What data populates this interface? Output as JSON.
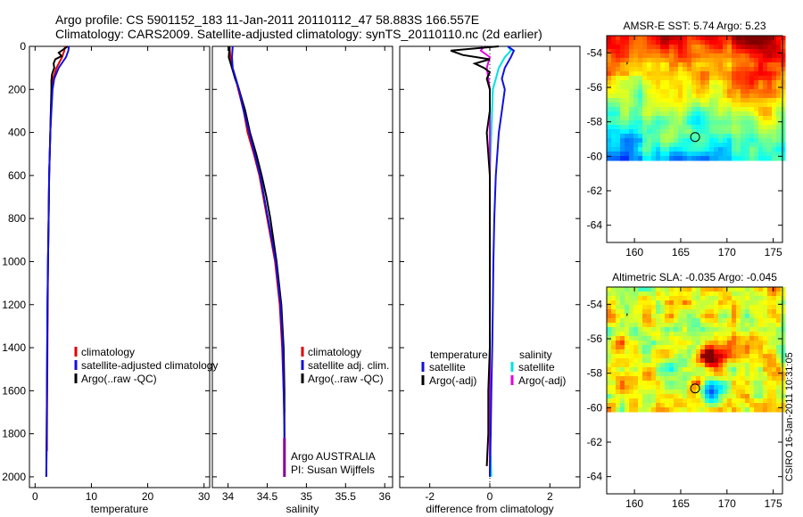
{
  "header": {
    "line1": "Argo profile: CS 5901152_183 11-Jan-2011 20110112_47 58.883S 166.557E",
    "line2": "Climatology: CARS2009. Satellite-adjusted climatology: synTS_20110110.nc (2d earlier)"
  },
  "colors": {
    "climatology": "#e00000",
    "satellite": "#1010e0",
    "argo": "#000000",
    "satellite_diff_salinity": "#00e0e0",
    "argo_diff_salinity": "#e000e0",
    "accent_purple": "#8000a0"
  },
  "chart_data": [
    {
      "type": "line",
      "panel": "temperature",
      "xlabel": "temperature",
      "xlim": [
        -1,
        31
      ],
      "ylim": [
        2050,
        0
      ],
      "xticks": [
        0,
        10,
        20,
        30
      ],
      "yticks": [
        0,
        200,
        400,
        600,
        800,
        1000,
        1200,
        1400,
        1600,
        1800,
        2000
      ],
      "ytick_labels": [
        "0",
        "200",
        "400",
        "600",
        "800",
        "1000",
        "1200",
        "1400",
        "1600",
        "1800",
        "2000"
      ],
      "xtick_labels": [
        "0",
        "10",
        "20",
        "30"
      ],
      "legend": [
        "climatology",
        "satellite-adjusted climatology",
        "Argo(..raw -QC)"
      ],
      "series": [
        {
          "name": "climatology",
          "depth": [
            0,
            20,
            50,
            100,
            150,
            200,
            300,
            400,
            600,
            800,
            1000,
            1200,
            1400,
            1600,
            1800,
            1880
          ],
          "values": [
            5.3,
            5.2,
            4.8,
            3.8,
            3.2,
            3.0,
            2.8,
            2.7,
            2.5,
            2.4,
            2.3,
            2.25,
            2.2,
            2.15,
            2.1,
            2.1
          ]
        },
        {
          "name": "satellite-adjusted climatology",
          "depth": [
            0,
            20,
            50,
            100,
            150,
            200,
            300,
            400,
            600,
            800,
            1000,
            1200,
            1400,
            1600,
            1800,
            2000
          ],
          "values": [
            6.0,
            5.9,
            5.5,
            4.2,
            3.4,
            3.1,
            2.9,
            2.7,
            2.5,
            2.4,
            2.3,
            2.2,
            2.15,
            2.1,
            2.05,
            2.0
          ]
        },
        {
          "name": "Argo(..raw -QC)",
          "depth": [
            0,
            15,
            30,
            45,
            60,
            80,
            100,
            130,
            160,
            200,
            300,
            400,
            600,
            800,
            1000,
            1200,
            1400,
            1600,
            1800,
            2000
          ],
          "values": [
            5.8,
            5.0,
            4.2,
            4.7,
            3.6,
            3.3,
            3.4,
            3.0,
            2.9,
            2.9,
            2.8,
            2.7,
            2.5,
            2.4,
            2.3,
            2.2,
            2.15,
            2.1,
            2.05,
            2.0
          ]
        }
      ]
    },
    {
      "type": "line",
      "panel": "salinity",
      "xlabel": "salinity",
      "xlim": [
        33.8,
        36.1
      ],
      "ylim": [
        2050,
        0
      ],
      "xticks": [
        34,
        34.5,
        35,
        35.5,
        36
      ],
      "xtick_labels": [
        "34",
        "34.5",
        "35",
        "35.5",
        "36"
      ],
      "legend": [
        "climatology",
        "satellite adj. clim.",
        "Argo(..raw -QC)"
      ],
      "annotation_lines": [
        "Argo AUSTRALIA",
        "PI: Susan Wijffels"
      ],
      "series": [
        {
          "name": "climatology",
          "depth": [
            0,
            50,
            100,
            150,
            200,
            300,
            400,
            500,
            600,
            700,
            800,
            1000,
            1200,
            1400,
            1600,
            1700
          ],
          "values": [
            34.02,
            34.03,
            34.05,
            34.1,
            34.13,
            34.2,
            34.25,
            34.33,
            34.4,
            34.45,
            34.5,
            34.6,
            34.66,
            34.69,
            34.71,
            34.72
          ]
        },
        {
          "name": "satellite adj. clim.",
          "depth": [
            0,
            50,
            100,
            150,
            200,
            300,
            400,
            500,
            600,
            700,
            800,
            1000,
            1200,
            1400,
            1600,
            1800,
            2000
          ],
          "values": [
            34.06,
            34.05,
            34.06,
            34.1,
            34.14,
            34.2,
            34.27,
            34.34,
            34.41,
            34.46,
            34.51,
            34.61,
            34.67,
            34.7,
            34.71,
            34.72,
            34.72
          ]
        },
        {
          "name": "Argo(..raw -QC)",
          "depth": [
            0,
            50,
            100,
            150,
            200,
            300,
            400,
            500,
            600,
            700,
            800,
            1000,
            1200,
            1400,
            1600,
            1800,
            2000
          ],
          "values": [
            34.02,
            34.01,
            34.05,
            34.09,
            34.14,
            34.22,
            34.28,
            34.36,
            34.43,
            34.49,
            34.54,
            34.62,
            34.68,
            34.71,
            34.72,
            34.72,
            34.72
          ]
        }
      ]
    },
    {
      "type": "line",
      "panel": "difference",
      "xlabel": "difference from climatology",
      "xlim": [
        -3,
        3
      ],
      "ylim": [
        2050,
        0
      ],
      "xticks": [
        -2,
        0,
        2
      ],
      "xtick_labels": [
        "-2",
        "0",
        "2"
      ],
      "legend_groups": [
        {
          "title": "temperature",
          "entries": [
            "satellite",
            "Argo(-adj)"
          ]
        },
        {
          "title": "salinity",
          "entries": [
            "satellite",
            "Argo(-adj)"
          ]
        }
      ],
      "series": [
        {
          "name": "temperature satellite",
          "depth": [
            0,
            20,
            50,
            100,
            150,
            200,
            300,
            400,
            600,
            800,
            1000,
            1200,
            1400,
            1600,
            1800,
            2000
          ],
          "values": [
            0.6,
            0.8,
            0.7,
            0.5,
            0.4,
            0.5,
            0.4,
            0.3,
            0.2,
            0.15,
            0.12,
            0.1,
            0.08,
            0.05,
            0.03,
            0.0
          ]
        },
        {
          "name": "temperature Argo(-adj)",
          "depth": [
            0,
            20,
            40,
            60,
            80,
            100,
            120,
            150,
            200,
            300,
            400,
            600,
            800,
            1000,
            1200,
            1400,
            1600,
            1800,
            1950
          ],
          "values": [
            0.3,
            -1.3,
            -0.9,
            0.0,
            -0.5,
            -0.2,
            0.0,
            -0.1,
            0.0,
            0.0,
            -0.1,
            0.0,
            0.0,
            0.0,
            0.0,
            0.0,
            -0.05,
            -0.05,
            -0.1
          ]
        },
        {
          "name": "salinity satellite",
          "depth": [
            0,
            20,
            50,
            100,
            200,
            400,
            600,
            800,
            1000,
            1200,
            1400,
            1600,
            1800,
            2000
          ],
          "values": [
            0.6,
            0.7,
            0.5,
            0.3,
            0.1,
            0.05,
            0.0,
            0.0,
            0.0,
            0.0,
            0.0,
            0.0,
            0.0,
            0.05
          ]
        },
        {
          "name": "salinity Argo(-adj)",
          "depth": [
            0,
            20,
            50,
            100,
            200,
            400,
            600,
            800,
            1000,
            1200,
            1400,
            1600,
            1800,
            2000
          ],
          "values": [
            -0.2,
            -0.3,
            0.0,
            -0.1,
            0.0,
            0.0,
            0.0,
            0.0,
            0.0,
            0.0,
            0.0,
            0.0,
            0.0,
            0.0
          ]
        }
      ]
    },
    {
      "type": "heatmap",
      "panel": "sst_map",
      "title": "AMSR-E SST: 5.74 Argo: 5.23",
      "xlim": [
        157,
        176
      ],
      "ylim": [
        -65,
        -53
      ],
      "xticks": [
        160,
        165,
        170,
        175
      ],
      "xtick_labels": [
        "160",
        "165",
        "170",
        "175"
      ],
      "yticks": [
        -54,
        -56,
        -58,
        -60,
        -62,
        -64
      ],
      "ytick_labels": [
        "-54",
        "-56",
        "-58",
        "-60",
        "-62",
        "-64"
      ],
      "data_lat_range": [
        -60,
        -53
      ],
      "marker": {
        "lon": 166.557,
        "lat": -58.883
      }
    },
    {
      "type": "heatmap",
      "panel": "sla_map",
      "title": "Altimetric SLA: -0.035 Argo: -0.045",
      "xlim": [
        157,
        176
      ],
      "ylim": [
        -65,
        -53
      ],
      "xticks": [
        160,
        165,
        170,
        175
      ],
      "xtick_labels": [
        "160",
        "165",
        "170",
        "175"
      ],
      "yticks": [
        -54,
        -56,
        -58,
        -60,
        -62,
        -64
      ],
      "ytick_labels": [
        "-54",
        "-56",
        "-58",
        "-60",
        "-62",
        "-64"
      ],
      "data_lat_range": [
        -60,
        -53
      ],
      "marker": {
        "lon": 166.557,
        "lat": -58.883
      }
    }
  ],
  "credit": "CSIRO 16-Jan-2011 10:31:05"
}
